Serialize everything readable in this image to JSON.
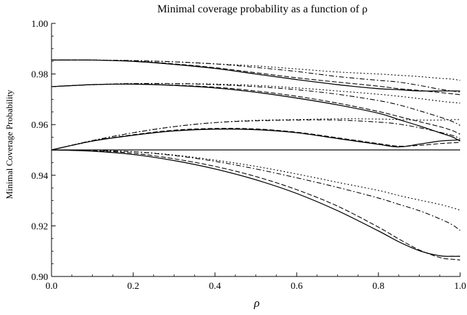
{
  "chart_data": {
    "type": "line",
    "title": "Minimal coverage probability as a function of ρ",
    "xlabel": "ρ",
    "ylabel": "Minimal Coverage Probability",
    "xlim": [
      0.0,
      1.0
    ],
    "ylim": [
      0.9,
      1.0
    ],
    "x_ticks": [
      "0.0",
      "0.2",
      "0.4",
      "0.6",
      "0.8",
      "1.0"
    ],
    "y_ticks": [
      "0.90",
      "0.92",
      "0.94",
      "0.96",
      "0.98",
      "1.00"
    ],
    "grid": false,
    "legend": "none",
    "line_color": "#000000",
    "x": [
      0.0,
      0.1,
      0.2,
      0.3,
      0.4,
      0.5,
      0.6,
      0.7,
      0.8,
      0.85,
      0.9,
      0.95,
      0.98,
      1.0
    ],
    "series": [
      {
        "style": "solid",
        "values": [
          0.9855,
          0.9855,
          0.985,
          0.9838,
          0.9822,
          0.98,
          0.9778,
          0.9758,
          0.9742,
          0.9738,
          0.9733,
          0.9733,
          0.9733,
          0.9733
        ]
      },
      {
        "style": "dashed",
        "values": [
          0.9855,
          0.9855,
          0.9851,
          0.984,
          0.9825,
          0.9805,
          0.9785,
          0.9768,
          0.9752,
          0.9742,
          0.9735,
          0.9727,
          0.9722,
          0.9718
        ]
      },
      {
        "style": "dashdot",
        "values": [
          0.9855,
          0.9855,
          0.9853,
          0.9848,
          0.984,
          0.9826,
          0.981,
          0.979,
          0.9775,
          0.9768,
          0.9755,
          0.974,
          0.9733,
          0.9728
        ]
      },
      {
        "style": "dotted",
        "values": [
          0.9855,
          0.9855,
          0.9853,
          0.9848,
          0.984,
          0.9832,
          0.982,
          0.9808,
          0.98,
          0.9795,
          0.979,
          0.9783,
          0.978,
          0.9775
        ]
      },
      {
        "style": "solid",
        "values": [
          0.975,
          0.9758,
          0.976,
          0.9755,
          0.9745,
          0.9728,
          0.9705,
          0.9678,
          0.9645,
          0.962,
          0.9595,
          0.9568,
          0.9552,
          0.9535
        ]
      },
      {
        "style": "dashed",
        "values": [
          0.975,
          0.9758,
          0.976,
          0.9756,
          0.9748,
          0.9733,
          0.9712,
          0.9685,
          0.9652,
          0.9632,
          0.9612,
          0.9592,
          0.9577,
          0.9562
        ]
      },
      {
        "style": "dashdot",
        "values": [
          0.975,
          0.9758,
          0.9762,
          0.9762,
          0.9758,
          0.975,
          0.9738,
          0.972,
          0.9695,
          0.9678,
          0.9655,
          0.963,
          0.9613,
          0.9597
        ]
      },
      {
        "style": "dotted",
        "values": [
          0.975,
          0.9758,
          0.9762,
          0.9762,
          0.976,
          0.9755,
          0.9745,
          0.9733,
          0.972,
          0.9712,
          0.9703,
          0.9693,
          0.9688,
          0.9685
        ]
      },
      {
        "style": "solid",
        "values": [
          0.95,
          0.9535,
          0.9558,
          0.9575,
          0.9582,
          0.958,
          0.9568,
          0.9545,
          0.9522,
          0.9512,
          0.9523,
          0.9535,
          0.9538,
          0.954
        ]
      },
      {
        "style": "dashed",
        "values": [
          0.95,
          0.9535,
          0.956,
          0.9578,
          0.9585,
          0.9583,
          0.957,
          0.9548,
          0.9525,
          0.9515,
          0.9518,
          0.9525,
          0.9528,
          0.953
        ]
      },
      {
        "style": "dashdot",
        "values": [
          0.95,
          0.9537,
          0.9568,
          0.9592,
          0.9608,
          0.9615,
          0.9618,
          0.9618,
          0.961,
          0.9602,
          0.9588,
          0.957,
          0.9558,
          0.9545
        ]
      },
      {
        "style": "dotted",
        "values": [
          0.95,
          0.9537,
          0.9568,
          0.9592,
          0.9608,
          0.9617,
          0.962,
          0.9623,
          0.9622,
          0.962,
          0.9618,
          0.9618,
          0.962,
          0.962
        ]
      },
      {
        "style": "solid",
        "values": [
          0.95,
          0.95,
          0.95,
          0.95,
          0.95,
          0.95,
          0.95,
          0.95,
          0.95,
          0.95,
          0.95,
          0.95,
          0.95,
          0.95
        ]
      },
      {
        "style": "dashed",
        "values": [
          0.95,
          0.95,
          0.95,
          0.95,
          0.95,
          0.95,
          0.95,
          0.95,
          0.95,
          0.95,
          0.95,
          0.95,
          0.95,
          0.95
        ]
      },
      {
        "style": "solid",
        "values": [
          0.95,
          0.9495,
          0.9482,
          0.9458,
          0.9425,
          0.9382,
          0.9328,
          0.926,
          0.918,
          0.9137,
          0.9102,
          0.9082,
          0.908,
          0.908
        ]
      },
      {
        "style": "dashed",
        "values": [
          0.95,
          0.9497,
          0.9487,
          0.9465,
          0.9435,
          0.9395,
          0.9343,
          0.9278,
          0.9195,
          0.9148,
          0.9105,
          0.9075,
          0.9068,
          0.9065
        ]
      },
      {
        "style": "dashdot",
        "values": [
          0.95,
          0.9498,
          0.9493,
          0.9478,
          0.9455,
          0.9425,
          0.939,
          0.9352,
          0.931,
          0.9285,
          0.926,
          0.9228,
          0.9205,
          0.9182
        ]
      },
      {
        "style": "dotted",
        "values": [
          0.95,
          0.9498,
          0.9493,
          0.948,
          0.946,
          0.9435,
          0.9405,
          0.9372,
          0.934,
          0.932,
          0.9302,
          0.9285,
          0.9272,
          0.9262
        ]
      }
    ]
  }
}
